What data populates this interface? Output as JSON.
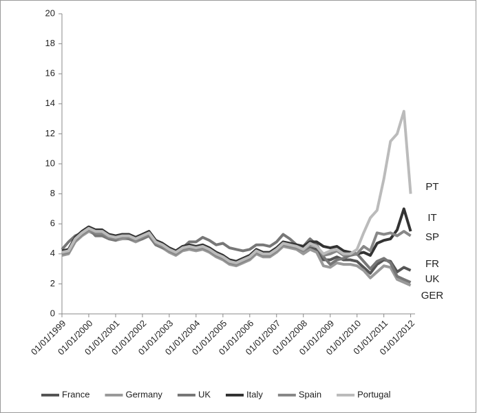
{
  "chart_data": {
    "type": "line",
    "x": [
      "01/01/1999",
      "01/04/1999",
      "01/07/1999",
      "01/10/1999",
      "01/01/2000",
      "01/04/2000",
      "01/07/2000",
      "01/10/2000",
      "01/01/2001",
      "01/04/2001",
      "01/07/2001",
      "01/10/2001",
      "01/01/2002",
      "01/04/2002",
      "01/07/2002",
      "01/10/2002",
      "01/01/2003",
      "01/04/2003",
      "01/07/2003",
      "01/10/2003",
      "01/01/2004",
      "01/04/2004",
      "01/07/2004",
      "01/10/2004",
      "01/01/2005",
      "01/04/2005",
      "01/07/2005",
      "01/10/2005",
      "01/01/2006",
      "01/04/2006",
      "01/07/2006",
      "01/10/2006",
      "01/01/2007",
      "01/04/2007",
      "01/07/2007",
      "01/10/2007",
      "01/01/2008",
      "01/04/2008",
      "01/07/2008",
      "01/10/2008",
      "01/01/2009",
      "01/04/2009",
      "01/07/2009",
      "01/10/2009",
      "01/01/2010",
      "01/04/2010",
      "01/07/2010",
      "01/10/2010",
      "01/01/2011",
      "01/04/2011",
      "01/07/2011",
      "01/10/2011",
      "01/01/2012"
    ],
    "series": [
      {
        "name": "France",
        "color": "#555555",
        "values": [
          4.0,
          4.1,
          4.9,
          5.3,
          5.6,
          5.4,
          5.4,
          5.1,
          5.0,
          5.1,
          5.1,
          4.9,
          5.1,
          5.3,
          4.7,
          4.5,
          4.2,
          4.0,
          4.3,
          4.4,
          4.3,
          4.4,
          4.2,
          3.9,
          3.7,
          3.4,
          3.3,
          3.5,
          3.7,
          4.1,
          3.9,
          3.9,
          4.2,
          4.6,
          4.5,
          4.4,
          4.1,
          4.4,
          4.3,
          3.6,
          3.6,
          3.8,
          3.6,
          3.6,
          3.5,
          3.1,
          2.7,
          3.3,
          3.6,
          3.5,
          2.8,
          3.1,
          2.9
        ]
      },
      {
        "name": "Germany",
        "color": "#999999",
        "values": [
          3.9,
          4.0,
          4.8,
          5.2,
          5.5,
          5.3,
          5.3,
          5.0,
          4.9,
          5.0,
          5.0,
          4.8,
          5.0,
          5.2,
          4.6,
          4.4,
          4.1,
          3.9,
          4.2,
          4.3,
          4.2,
          4.3,
          4.1,
          3.8,
          3.6,
          3.3,
          3.2,
          3.4,
          3.6,
          4.0,
          3.8,
          3.8,
          4.1,
          4.5,
          4.4,
          4.3,
          4.0,
          4.3,
          4.1,
          3.2,
          3.1,
          3.4,
          3.3,
          3.3,
          3.2,
          2.9,
          2.4,
          2.8,
          3.2,
          3.1,
          2.3,
          2.1,
          1.9
        ]
      },
      {
        "name": "UK",
        "color": "#777777",
        "values": [
          4.3,
          4.8,
          5.2,
          5.4,
          5.7,
          5.2,
          5.2,
          5.0,
          4.9,
          5.2,
          5.0,
          4.9,
          5.0,
          5.2,
          4.6,
          4.4,
          4.3,
          4.1,
          4.4,
          4.8,
          4.8,
          5.1,
          4.9,
          4.6,
          4.7,
          4.4,
          4.3,
          4.2,
          4.3,
          4.6,
          4.6,
          4.5,
          4.8,
          5.3,
          5.0,
          4.6,
          4.5,
          5.0,
          4.6,
          3.8,
          3.3,
          3.6,
          3.7,
          3.9,
          4.0,
          3.5,
          3.0,
          3.5,
          3.7,
          3.4,
          2.5,
          2.3,
          2.1
        ]
      },
      {
        "name": "Italy",
        "color": "#333333",
        "values": [
          4.2,
          4.3,
          5.1,
          5.5,
          5.8,
          5.6,
          5.6,
          5.3,
          5.2,
          5.3,
          5.3,
          5.1,
          5.3,
          5.5,
          4.9,
          4.7,
          4.4,
          4.2,
          4.5,
          4.6,
          4.5,
          4.6,
          4.4,
          4.1,
          3.9,
          3.6,
          3.5,
          3.7,
          3.9,
          4.3,
          4.1,
          4.1,
          4.4,
          4.8,
          4.7,
          4.6,
          4.5,
          4.8,
          4.8,
          4.5,
          4.4,
          4.5,
          4.2,
          4.1,
          4.0,
          4.1,
          3.9,
          4.7,
          4.9,
          5.0,
          5.6,
          7.0,
          5.5
        ]
      },
      {
        "name": "Spain",
        "color": "#888888",
        "values": [
          4.0,
          4.1,
          4.9,
          5.3,
          5.6,
          5.4,
          5.4,
          5.1,
          5.0,
          5.1,
          5.1,
          4.9,
          5.1,
          5.3,
          4.7,
          4.5,
          4.2,
          4.0,
          4.3,
          4.4,
          4.3,
          4.4,
          4.2,
          3.9,
          3.7,
          3.4,
          3.3,
          3.5,
          3.7,
          4.1,
          3.9,
          3.9,
          4.2,
          4.6,
          4.5,
          4.4,
          4.2,
          4.6,
          4.5,
          3.9,
          4.0,
          4.2,
          3.9,
          4.0,
          4.0,
          4.5,
          4.2,
          5.4,
          5.3,
          5.4,
          5.2,
          5.5,
          5.2
        ]
      },
      {
        "name": "Portugal",
        "color": "#bbbbbb",
        "values": [
          4.1,
          4.2,
          5.0,
          5.4,
          5.7,
          5.5,
          5.5,
          5.2,
          5.1,
          5.2,
          5.2,
          5.0,
          5.2,
          5.4,
          4.8,
          4.6,
          4.3,
          4.1,
          4.4,
          4.5,
          4.4,
          4.5,
          4.3,
          4.0,
          3.8,
          3.5,
          3.4,
          3.6,
          3.8,
          4.2,
          4.0,
          4.0,
          4.3,
          4.7,
          4.6,
          4.5,
          4.3,
          4.7,
          4.5,
          4.0,
          4.2,
          4.3,
          4.0,
          4.0,
          4.3,
          5.4,
          6.4,
          6.9,
          9.0,
          11.5,
          12.0,
          13.5,
          8.0
        ]
      }
    ],
    "annotations": [
      "PT",
      "IT",
      "SP",
      "FR",
      "UK",
      "GER"
    ],
    "xlim": [
      "01/01/1999",
      "01/03/2012"
    ],
    "xticks": [
      "01/01/1999",
      "01/01/2000",
      "01/01/2001",
      "01/01/2002",
      "01/01/2003",
      "01/01/2004",
      "01/01/2005",
      "01/01/2006",
      "01/01/2007",
      "01/01/2008",
      "01/01/2009",
      "01/01/2010",
      "01/01/2011",
      "01/01/2012"
    ],
    "ylim": [
      0,
      20
    ],
    "yticks": [
      0,
      2,
      4,
      6,
      8,
      10,
      12,
      14,
      16,
      18,
      20
    ],
    "grid": false,
    "legend": "bottom"
  }
}
